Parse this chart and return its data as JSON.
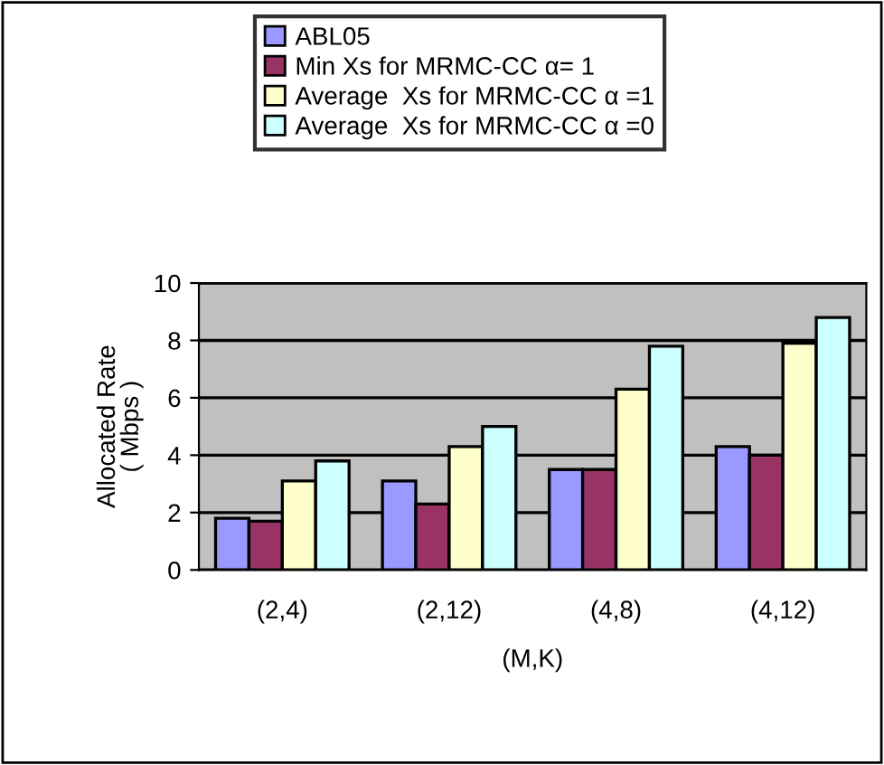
{
  "chart_data": {
    "type": "bar",
    "xlabel": "(M,K)",
    "ylabel": "Allocated Rate\n( Mbps )",
    "categories": [
      "(2,4)",
      "(2,12)",
      "(4,8)",
      "(4,12)"
    ],
    "series": [
      {
        "name": "ABL05",
        "color": "#9999ff",
        "values": [
          1.8,
          3.1,
          3.5,
          4.3
        ]
      },
      {
        "name": "Min Xs for MRMC-CC α= 1",
        "color": "#993366",
        "values": [
          1.7,
          2.3,
          3.5,
          4.0
        ]
      },
      {
        "name": "Average  Xs for MRMC-CC α =1",
        "color": "#ffffcc",
        "values": [
          3.1,
          4.3,
          6.3,
          7.9
        ]
      },
      {
        "name": "Average  Xs for MRMC-CC α =0",
        "color": "#ccffff",
        "values": [
          3.8,
          5.0,
          7.8,
          8.8
        ]
      }
    ],
    "ylim": [
      0,
      10
    ],
    "yticks": [
      0,
      2,
      4,
      6,
      8,
      10
    ],
    "grid": "y",
    "legend": "top"
  }
}
